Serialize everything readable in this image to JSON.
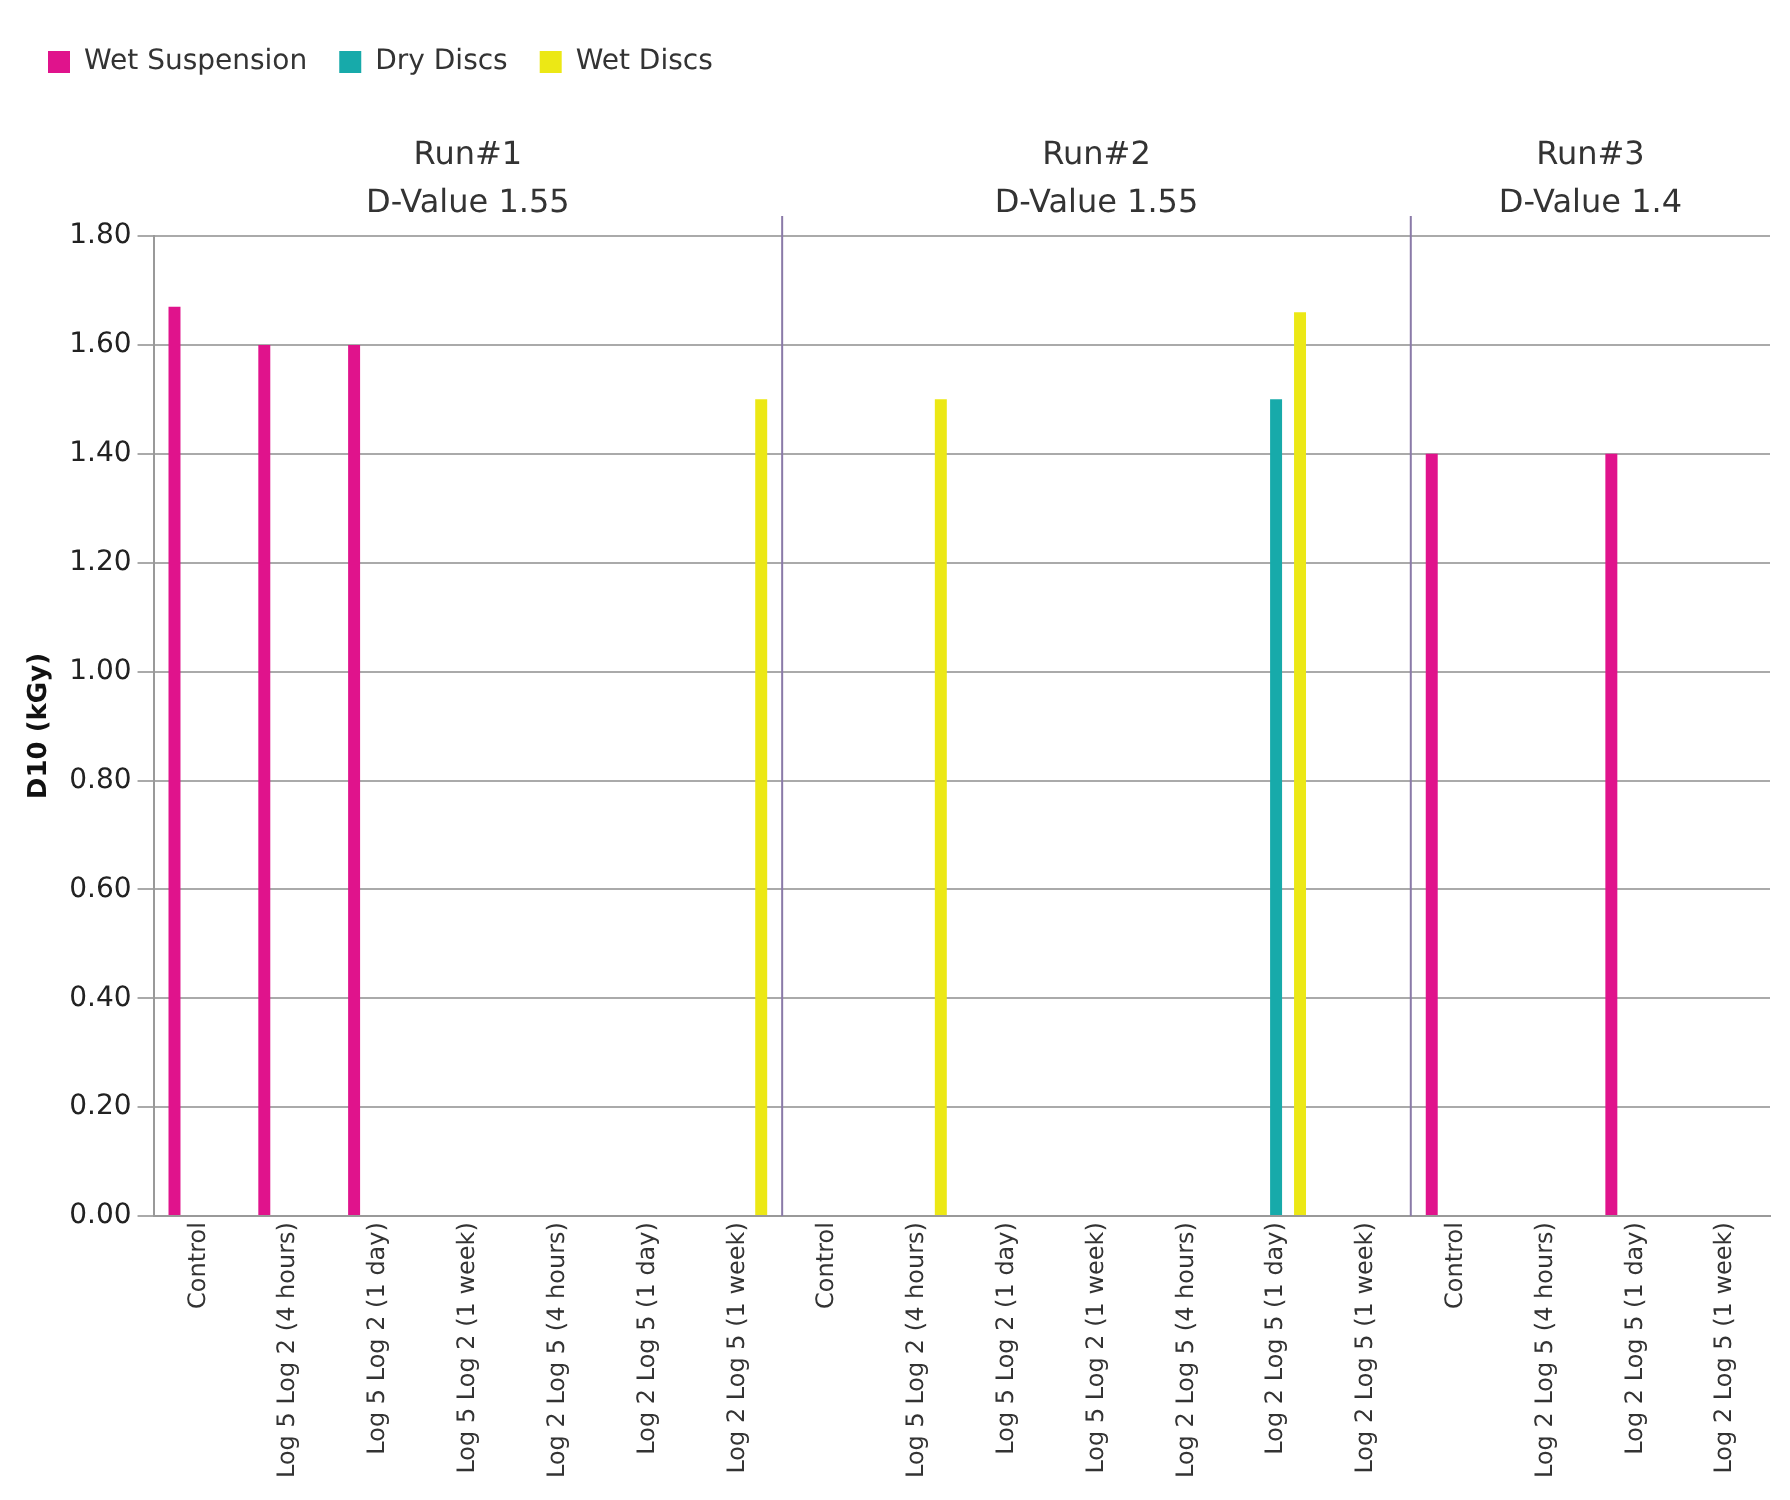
{
  "chart_data": {
    "type": "bar",
    "ylabel": "D10 (kGy)",
    "categories": [
      "Control",
      "Log 5 Log 2 (4 hours)",
      "Log 5 Log 2 (1 day)",
      "Log 5 Log 2 (1 week)",
      "Log 2 Log 5 (4 hours)",
      "Log 2 Log 5 (1 day)",
      "Log 2 Log 5 (1 week)",
      "Control",
      "Log 5 Log 2 (4 hours)",
      "Log 5 Log 2 (1 day)",
      "Log 5 Log 2 (1 week)",
      "Log 2 Log 5 (4 hours)",
      "Log 2 Log 5 (1 day)",
      "Log 2 Log 5 (1 week)",
      "Control",
      "Log 2 Log 5 (4 hours)",
      "Log 2 Log 5 (1 day)",
      "Log 2 Log 5 (1 week)"
    ],
    "series": [
      {
        "name": "Wet Suspension",
        "color": "#e0138c",
        "values": [
          1.67,
          1.6,
          1.6,
          null,
          null,
          null,
          null,
          null,
          null,
          null,
          null,
          null,
          null,
          null,
          1.4,
          null,
          1.4,
          null
        ]
      },
      {
        "name": "Dry Discs",
        "color": "#17aaaa",
        "values": [
          null,
          null,
          null,
          null,
          null,
          null,
          null,
          null,
          null,
          null,
          null,
          null,
          1.5,
          null,
          null,
          null,
          null,
          null
        ]
      },
      {
        "name": "Wet Discs",
        "color": "#ece815",
        "values": [
          null,
          null,
          null,
          null,
          null,
          null,
          1.5,
          null,
          1.5,
          null,
          null,
          null,
          1.66,
          null,
          null,
          null,
          null,
          null
        ]
      }
    ],
    "ylim": [
      0,
      1.8
    ],
    "yticks": [
      {
        "value": 0,
        "label": "0.00"
      },
      {
        "value": 0.2,
        "label": "0.20"
      },
      {
        "value": 0.4,
        "label": "0.40"
      },
      {
        "value": 0.6,
        "label": "0.60"
      },
      {
        "value": 0.8,
        "label": "0.80"
      },
      {
        "value": 1,
        "label": "1.00"
      },
      {
        "value": 1.2,
        "label": "1.20"
      },
      {
        "value": 1.4,
        "label": "1.40"
      },
      {
        "value": 1.6,
        "label": "1.60"
      },
      {
        "value": 1.8,
        "label": "1.80"
      }
    ],
    "annotations": [
      "Run#1\nD-Value 1.55",
      "Run#2\nD-Value 1.55",
      "Run#3\nD-Value 1.4"
    ],
    "grid": "y",
    "legend": "top left"
  }
}
